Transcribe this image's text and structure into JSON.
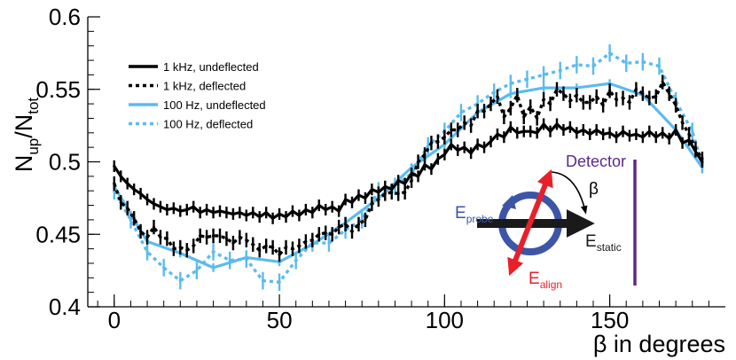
{
  "chart_data": {
    "type": "line",
    "title": "",
    "xlabel": "β in degrees",
    "ylabel": "N",
    "ylabel_sub_up": "up",
    "ylabel_slash": "/N",
    "ylabel_sub_tot": "tot",
    "xlim": [
      -8,
      185
    ],
    "ylim": [
      0.4,
      0.6
    ],
    "x_ticks": [
      0,
      50,
      100,
      150
    ],
    "x_tick_labels": [
      "0",
      "50",
      "100",
      "150"
    ],
    "y_ticks": [
      0.4,
      0.45,
      0.5,
      0.55,
      0.6
    ],
    "y_tick_labels": [
      "0.4",
      "0.45",
      "0.5",
      "0.55",
      "0.6"
    ],
    "grid": false,
    "legend_position": "top-left",
    "series": [
      {
        "name": "1 kHz, undeflected",
        "color": "#000000",
        "style": "solid",
        "error_bar": 0.004,
        "x": [
          0,
          2,
          4,
          6,
          8,
          10,
          12,
          14,
          16,
          18,
          20,
          22,
          24,
          26,
          28,
          30,
          32,
          34,
          36,
          38,
          40,
          42,
          44,
          46,
          48,
          50,
          52,
          54,
          56,
          58,
          60,
          62,
          64,
          66,
          68,
          70,
          72,
          74,
          76,
          78,
          80,
          82,
          84,
          86,
          88,
          90,
          92,
          94,
          96,
          98,
          100,
          102,
          104,
          106,
          108,
          110,
          112,
          114,
          116,
          118,
          120,
          122,
          124,
          126,
          128,
          130,
          132,
          134,
          136,
          138,
          140,
          142,
          144,
          146,
          148,
          150,
          152,
          154,
          156,
          158,
          160,
          162,
          164,
          166,
          168,
          170,
          172,
          174,
          176,
          178
        ],
        "y": [
          0.497,
          0.49,
          0.485,
          0.481,
          0.478,
          0.474,
          0.471,
          0.469,
          0.467,
          0.468,
          0.466,
          0.467,
          0.469,
          0.465,
          0.467,
          0.465,
          0.466,
          0.465,
          0.464,
          0.465,
          0.463,
          0.465,
          0.462,
          0.465,
          0.461,
          0.464,
          0.462,
          0.466,
          0.463,
          0.467,
          0.465,
          0.47,
          0.467,
          0.469,
          0.466,
          0.474,
          0.472,
          0.477,
          0.475,
          0.481,
          0.479,
          0.483,
          0.481,
          0.487,
          0.485,
          0.492,
          0.49,
          0.498,
          0.495,
          0.502,
          0.505,
          0.512,
          0.508,
          0.51,
          0.506,
          0.512,
          0.51,
          0.514,
          0.519,
          0.517,
          0.524,
          0.52,
          0.521,
          0.521,
          0.52,
          0.526,
          0.521,
          0.526,
          0.522,
          0.524,
          0.52,
          0.522,
          0.519,
          0.522,
          0.519,
          0.52,
          0.517,
          0.521,
          0.518,
          0.519,
          0.517,
          0.521,
          0.517,
          0.52,
          0.516,
          0.522,
          0.513,
          0.515,
          0.507,
          0.5
        ]
      },
      {
        "name": "1 kHz, deflected",
        "color": "#000000",
        "style": "dotted",
        "error_bar": 0.005,
        "x": [
          0,
          2,
          4,
          6,
          8,
          10,
          12,
          14,
          16,
          18,
          20,
          22,
          24,
          26,
          28,
          30,
          32,
          34,
          36,
          38,
          40,
          42,
          44,
          46,
          48,
          50,
          52,
          54,
          56,
          58,
          60,
          62,
          64,
          66,
          68,
          70,
          72,
          74,
          76,
          78,
          80,
          82,
          84,
          86,
          88,
          90,
          92,
          94,
          96,
          98,
          100,
          102,
          104,
          106,
          108,
          110,
          112,
          114,
          116,
          118,
          120,
          122,
          124,
          126,
          128,
          130,
          132,
          134,
          136,
          138,
          140,
          142,
          144,
          146,
          148,
          150,
          152,
          154,
          156,
          158,
          160,
          162,
          164,
          166,
          168,
          170,
          172,
          174,
          176,
          178
        ],
        "y": [
          0.485,
          0.472,
          0.468,
          0.461,
          0.452,
          0.448,
          0.455,
          0.448,
          0.447,
          0.44,
          0.441,
          0.439,
          0.442,
          0.449,
          0.448,
          0.449,
          0.449,
          0.447,
          0.444,
          0.448,
          0.446,
          0.443,
          0.439,
          0.442,
          0.441,
          0.436,
          0.441,
          0.44,
          0.442,
          0.445,
          0.446,
          0.45,
          0.451,
          0.45,
          0.455,
          0.457,
          0.452,
          0.457,
          0.46,
          0.471,
          0.474,
          0.478,
          0.479,
          0.478,
          0.479,
          0.487,
          0.5,
          0.505,
          0.513,
          0.514,
          0.517,
          0.522,
          0.522,
          0.527,
          0.525,
          0.535,
          0.535,
          0.54,
          0.545,
          0.531,
          0.537,
          0.546,
          0.531,
          0.538,
          0.53,
          0.543,
          0.54,
          0.55,
          0.547,
          0.542,
          0.546,
          0.541,
          0.541,
          0.545,
          0.539,
          0.549,
          0.543,
          0.544,
          0.541,
          0.55,
          0.547,
          0.544,
          0.545,
          0.555,
          0.547,
          0.539,
          0.527,
          0.519,
          0.509,
          0.502
        ]
      },
      {
        "name": "100 Hz, undeflected",
        "color": "#5bbbee",
        "style": "solid",
        "error_bar": 0.003,
        "x": [
          0,
          10,
          20,
          30,
          40,
          50,
          60,
          70,
          80,
          90,
          100,
          110,
          120,
          130,
          140,
          150,
          160,
          170,
          178
        ],
        "y": [
          0.483,
          0.445,
          0.437,
          0.427,
          0.434,
          0.431,
          0.443,
          0.458,
          0.475,
          0.496,
          0.512,
          0.534,
          0.547,
          0.551,
          0.551,
          0.554,
          0.546,
          0.522,
          0.496
        ]
      },
      {
        "name": "100 Hz, deflected",
        "color": "#5bbbee",
        "style": "dotted",
        "error_bar": 0.006,
        "x": [
          0,
          5,
          10,
          15,
          20,
          25,
          30,
          35,
          40,
          45,
          50,
          55,
          60,
          65,
          70,
          75,
          80,
          85,
          90,
          95,
          100,
          105,
          110,
          115,
          120,
          125,
          130,
          135,
          140,
          145,
          150,
          155,
          160,
          165,
          170,
          175,
          178
        ],
        "y": [
          0.48,
          0.46,
          0.438,
          0.427,
          0.418,
          0.425,
          0.438,
          0.432,
          0.433,
          0.418,
          0.417,
          0.432,
          0.444,
          0.444,
          0.453,
          0.46,
          0.48,
          0.483,
          0.492,
          0.511,
          0.521,
          0.534,
          0.54,
          0.548,
          0.554,
          0.557,
          0.56,
          0.563,
          0.567,
          0.566,
          0.575,
          0.568,
          0.569,
          0.566,
          0.542,
          0.521,
          0.498
        ]
      }
    ],
    "inset": {
      "detector_label": "Detector",
      "beta_label": "β",
      "e_probe_main": "E",
      "e_probe_sub": "probe",
      "e_static_main": "E",
      "e_static_sub": "static",
      "e_align_main": "E",
      "e_align_sub": "align",
      "colors": {
        "detector": "#5b2a8c",
        "probe": "#3d55a6",
        "align": "#e8202a",
        "static": "#1a1a1a"
      }
    }
  }
}
